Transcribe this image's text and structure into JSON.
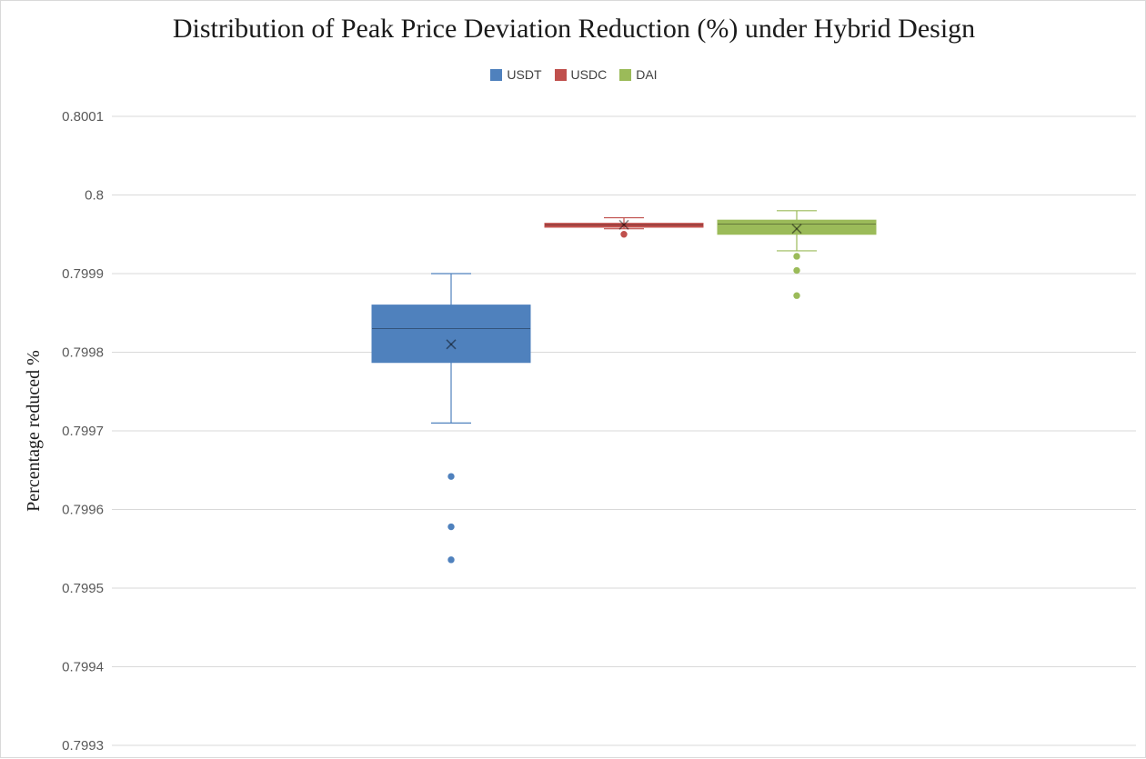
{
  "chart_data": {
    "type": "box",
    "title": "Distribution of Peak Price Deviation Reduction (%) under Hybrid Design",
    "ylabel": "Percentage reduced %",
    "xlabel": "",
    "ylim": [
      0.7993,
      0.8001
    ],
    "y_ticks": [
      "0.7993",
      "0.7994",
      "0.7995",
      "0.7996",
      "0.7997",
      "0.7998",
      "0.7999",
      "0.8",
      "0.8001"
    ],
    "grid": true,
    "legend_position": "top",
    "series": [
      {
        "name": "USDT",
        "color": "#4f81bd",
        "whisker_low": 0.79971,
        "q1": 0.799787,
        "median": 0.79983,
        "q3": 0.79986,
        "whisker_high": 0.7999,
        "mean": 0.79981,
        "outliers": [
          0.799642,
          0.799578,
          0.799536
        ]
      },
      {
        "name": "USDC",
        "color": "#c0504d",
        "whisker_low": 0.799957,
        "q1": 0.799959,
        "median": 0.799962,
        "q3": 0.799964,
        "whisker_high": 0.799971,
        "mean": 0.799962,
        "outliers": [
          0.79995
        ]
      },
      {
        "name": "DAI",
        "color": "#9bbb59",
        "whisker_low": 0.799929,
        "q1": 0.79995,
        "median": 0.799963,
        "q3": 0.799968,
        "whisker_high": 0.79998,
        "mean": 0.799957,
        "outliers": [
          0.799922,
          0.799904,
          0.799872
        ]
      }
    ]
  }
}
